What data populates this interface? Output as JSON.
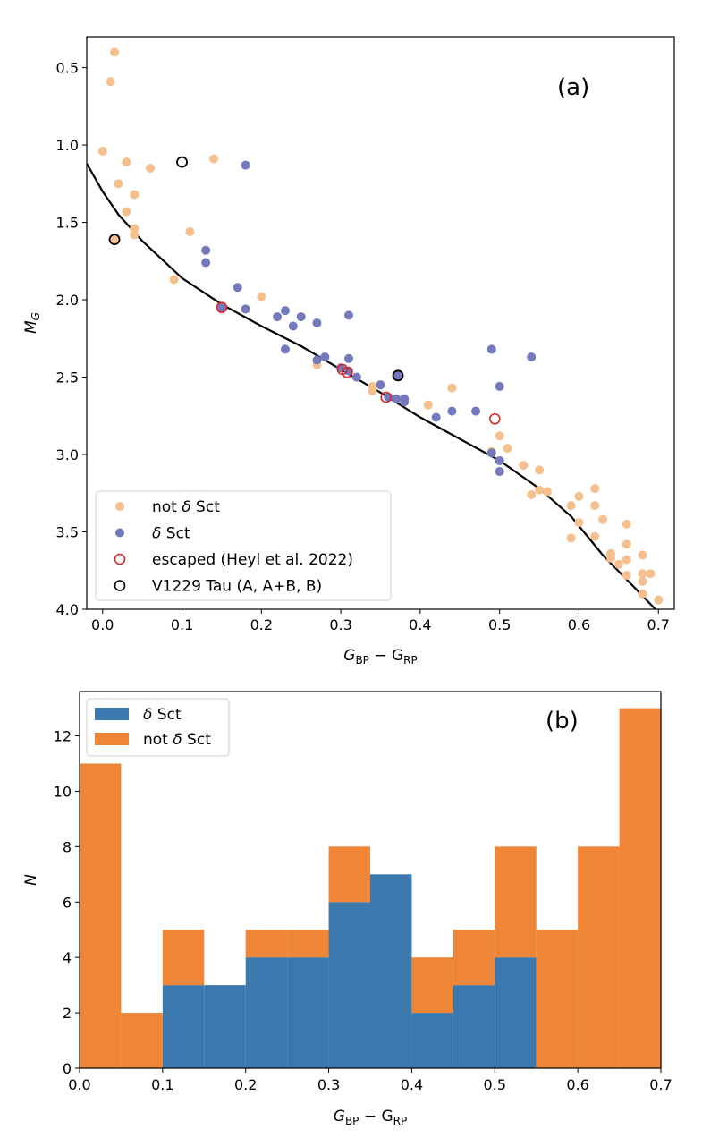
{
  "colors": {
    "not_dsct_scatter": "#f5c08e",
    "dsct_scatter": "#7479bd",
    "escaped": "#d62728",
    "v1229": "#000000",
    "hist_dsct": "#3a78ae",
    "hist_not_dsct": "#ef8637"
  },
  "chart_data": [
    {
      "type": "scatter",
      "panel_label": "(a)",
      "xlabel_main": "G",
      "xlabel_sub1": "BP",
      "xlabel_mid": " − G",
      "xlabel_sub2": "RP",
      "ylabel_main": "M",
      "ylabel_sub": "G",
      "xlim": [
        -0.02,
        0.72
      ],
      "ylim": [
        4.0,
        0.3
      ],
      "y_inverted": true,
      "xticks": [
        0.0,
        0.1,
        0.2,
        0.3,
        0.4,
        0.5,
        0.6,
        0.7
      ],
      "xtick_labels": [
        "0.0",
        "0.1",
        "0.2",
        "0.3",
        "0.4",
        "0.5",
        "0.6",
        "0.7"
      ],
      "yticks": [
        0.5,
        1.0,
        1.5,
        2.0,
        2.5,
        3.0,
        3.5,
        4.0
      ],
      "ytick_labels": [
        "0.5",
        "1.0",
        "1.5",
        "2.0",
        "2.5",
        "3.0",
        "3.5",
        "4.0"
      ],
      "grid": false,
      "legend_position": "lower-left",
      "legend": [
        {
          "label_pre": "not ",
          "label_delta": "δ",
          "label_post": " Sct",
          "marker": "filled",
          "color": "#f5c08e"
        },
        {
          "label_pre": "",
          "label_delta": "δ",
          "label_post": " Sct",
          "marker": "filled",
          "color": "#7479bd"
        },
        {
          "label_pre": "escaped (Heyl et al. 2022)",
          "label_delta": "",
          "label_post": "",
          "marker": "ring",
          "color": "#d62728"
        },
        {
          "label_pre": "V1229 Tau (A, A+B, B)",
          "label_delta": "",
          "label_post": "",
          "marker": "ring",
          "color": "#000000"
        }
      ],
      "series": [
        {
          "name": "not δ Sct",
          "points": [
            [
              0.015,
              0.4
            ],
            [
              0.01,
              0.59
            ],
            [
              0.0,
              1.04
            ],
            [
              0.03,
              1.11
            ],
            [
              0.06,
              1.15
            ],
            [
              0.14,
              1.09
            ],
            [
              0.02,
              1.25
            ],
            [
              0.04,
              1.32
            ],
            [
              0.04,
              1.32
            ],
            [
              0.03,
              1.43
            ],
            [
              0.04,
              1.54
            ],
            [
              0.04,
              1.58
            ],
            [
              0.11,
              1.56
            ],
            [
              0.09,
              1.87
            ],
            [
              0.2,
              1.98
            ],
            [
              0.27,
              2.42
            ],
            [
              0.34,
              2.56
            ],
            [
              0.34,
              2.59
            ],
            [
              0.41,
              2.68
            ],
            [
              0.44,
              2.57
            ],
            [
              0.49,
              2.98
            ],
            [
              0.5,
              2.88
            ],
            [
              0.51,
              2.96
            ],
            [
              0.53,
              3.07
            ],
            [
              0.55,
              3.1
            ],
            [
              0.55,
              3.23
            ],
            [
              0.56,
              3.24
            ],
            [
              0.54,
              3.26
            ],
            [
              0.6,
              3.27
            ],
            [
              0.62,
              3.22
            ],
            [
              0.59,
              3.33
            ],
            [
              0.62,
              3.33
            ],
            [
              0.6,
              3.44
            ],
            [
              0.63,
              3.42
            ],
            [
              0.66,
              3.45
            ],
            [
              0.59,
              3.54
            ],
            [
              0.62,
              3.53
            ],
            [
              0.66,
              3.58
            ],
            [
              0.64,
              3.64
            ],
            [
              0.64,
              3.67
            ],
            [
              0.66,
              3.68
            ],
            [
              0.65,
              3.71
            ],
            [
              0.68,
              3.65
            ],
            [
              0.66,
              3.78
            ],
            [
              0.68,
              3.77
            ],
            [
              0.69,
              3.77
            ],
            [
              0.68,
              3.82
            ],
            [
              0.68,
              3.9
            ],
            [
              0.7,
              3.94
            ]
          ]
        },
        {
          "name": "δ Sct",
          "points": [
            [
              0.18,
              1.13
            ],
            [
              0.13,
              1.68
            ],
            [
              0.13,
              1.76
            ],
            [
              0.17,
              1.92
            ],
            [
              0.15,
              2.05
            ],
            [
              0.18,
              2.06
            ],
            [
              0.23,
              2.07
            ],
            [
              0.22,
              2.11
            ],
            [
              0.25,
              2.11
            ],
            [
              0.24,
              2.17
            ],
            [
              0.27,
              2.15
            ],
            [
              0.31,
              2.1
            ],
            [
              0.23,
              2.32
            ],
            [
              0.27,
              2.39
            ],
            [
              0.28,
              2.37
            ],
            [
              0.31,
              2.38
            ],
            [
              0.3,
              2.44
            ],
            [
              0.31,
              2.46
            ],
            [
              0.32,
              2.5
            ],
            [
              0.35,
              2.55
            ],
            [
              0.35,
              2.55
            ],
            [
              0.36,
              2.63
            ],
            [
              0.37,
              2.64
            ],
            [
              0.38,
              2.64
            ],
            [
              0.38,
              2.66
            ],
            [
              0.42,
              2.76
            ],
            [
              0.44,
              2.72
            ],
            [
              0.47,
              2.72
            ],
            [
              0.49,
              2.32
            ],
            [
              0.54,
              2.37
            ],
            [
              0.5,
              2.56
            ],
            [
              0.49,
              2.99
            ],
            [
              0.5,
              3.04
            ],
            [
              0.5,
              3.11
            ]
          ]
        }
      ],
      "escaped": [
        [
          0.15,
          2.05
        ],
        [
          0.302,
          2.45
        ],
        [
          0.308,
          2.47
        ],
        [
          0.357,
          2.63
        ],
        [
          0.494,
          2.77
        ]
      ],
      "v1229_tau": [
        {
          "x": 0.1,
          "y": 1.11,
          "fill": "none"
        },
        {
          "x": 0.015,
          "y": 1.61,
          "fill": "#f5c08e"
        },
        {
          "x": 0.372,
          "y": 2.49,
          "fill": "#7479bd"
        }
      ],
      "curve": [
        [
          -0.02,
          1.12
        ],
        [
          0.0,
          1.3
        ],
        [
          0.02,
          1.45
        ],
        [
          0.05,
          1.62
        ],
        [
          0.1,
          1.86
        ],
        [
          0.15,
          2.03
        ],
        [
          0.2,
          2.17
        ],
        [
          0.25,
          2.3
        ],
        [
          0.3,
          2.45
        ],
        [
          0.35,
          2.6
        ],
        [
          0.4,
          2.76
        ],
        [
          0.45,
          2.9
        ],
        [
          0.5,
          3.04
        ],
        [
          0.55,
          3.22
        ],
        [
          0.59,
          3.4
        ],
        [
          0.63,
          3.65
        ],
        [
          0.67,
          3.86
        ],
        [
          0.7,
          4.02
        ]
      ]
    },
    {
      "type": "bar",
      "stacked": true,
      "panel_label": "(b)",
      "xlabel_main": "G",
      "xlabel_sub1": "BP",
      "xlabel_mid": " − G",
      "xlabel_sub2": "RP",
      "ylabel": "N",
      "xlim": [
        0.0,
        0.7
      ],
      "ylim": [
        0,
        13.6
      ],
      "xticks": [
        0.0,
        0.1,
        0.2,
        0.3,
        0.4,
        0.5,
        0.6,
        0.7
      ],
      "xtick_labels": [
        "0.0",
        "0.1",
        "0.2",
        "0.3",
        "0.4",
        "0.5",
        "0.6",
        "0.7"
      ],
      "yticks": [
        0,
        2,
        4,
        6,
        8,
        10,
        12
      ],
      "ytick_labels": [
        "0",
        "2",
        "4",
        "6",
        "8",
        "10",
        "12"
      ],
      "grid": false,
      "legend_position": "top-left",
      "legend": [
        {
          "label_pre": "",
          "label_delta": "δ",
          "label_post": " Sct",
          "color": "#3a78ae"
        },
        {
          "label_pre": "not ",
          "label_delta": "δ",
          "label_post": " Sct",
          "color": "#ef8637"
        }
      ],
      "bin_edges": [
        0.0,
        0.05,
        0.1,
        0.15,
        0.2,
        0.25,
        0.3,
        0.35,
        0.4,
        0.45,
        0.5,
        0.55,
        0.6,
        0.65,
        0.7
      ],
      "series": [
        {
          "name": "δ Sct",
          "values": [
            0,
            0,
            3,
            3,
            4,
            4,
            6,
            7,
            2,
            3,
            4,
            0,
            0,
            0
          ]
        },
        {
          "name": "not δ Sct",
          "values": [
            11,
            2,
            2,
            0,
            1,
            1,
            2,
            0,
            2,
            2,
            4,
            5,
            8,
            13
          ]
        }
      ]
    }
  ]
}
